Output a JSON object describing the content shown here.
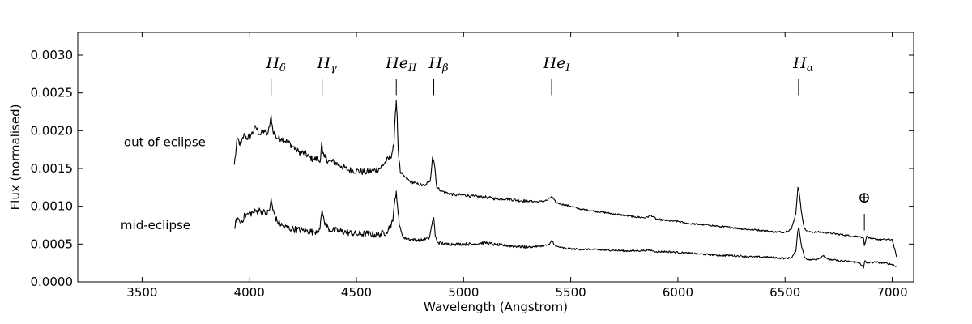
{
  "chart_data": {
    "type": "line",
    "title": "",
    "xlabel": "Wavelength (Angstrom)",
    "ylabel": "Flux (normalised)",
    "xlim": [
      3200,
      7100
    ],
    "ylim": [
      0,
      0.0033
    ],
    "x_ticks": [
      {
        "value": 3500,
        "label": "3500"
      },
      {
        "value": 4000,
        "label": "4000"
      },
      {
        "value": 4500,
        "label": "4500"
      },
      {
        "value": 5000,
        "label": "5000"
      },
      {
        "value": 5500,
        "label": "5500"
      },
      {
        "value": 6000,
        "label": "6000"
      },
      {
        "value": 6500,
        "label": "6500"
      },
      {
        "value": 7000,
        "label": "7000"
      }
    ],
    "y_ticks": [
      {
        "value": 0,
        "label": "0.0000"
      },
      {
        "value": 0.0005,
        "label": "0.0005"
      },
      {
        "value": 0.001,
        "label": "0.0010"
      },
      {
        "value": 0.0015,
        "label": "0.0015"
      },
      {
        "value": 0.002,
        "label": "0.0020"
      },
      {
        "value": 0.0025,
        "label": "0.0025"
      },
      {
        "value": 0.003,
        "label": "0.0030"
      }
    ],
    "grid": false,
    "legend": "none",
    "series": [
      {
        "name": "out of eclipse",
        "label_anchor": {
          "x": 3400,
          "y": 0.00185
        },
        "x": [
          3930,
          3945,
          3960,
          3975,
          3990,
          4010,
          4030,
          4050,
          4070,
          4085,
          4095,
          4102,
          4110,
          4130,
          4150,
          4180,
          4200,
          4230,
          4260,
          4280,
          4300,
          4320,
          4330,
          4338,
          4342,
          4350,
          4370,
          4400,
          4430,
          4460,
          4500,
          4540,
          4580,
          4610,
          4640,
          4660,
          4675,
          4682,
          4686,
          4690,
          4695,
          4705,
          4720,
          4750,
          4780,
          4820,
          4845,
          4855,
          4861,
          4866,
          4875,
          4900,
          4930,
          4960,
          5000,
          5050,
          5100,
          5150,
          5200,
          5250,
          5300,
          5350,
          5390,
          5411,
          5430,
          5470,
          5500,
          5550,
          5600,
          5650,
          5700,
          5750,
          5800,
          5850,
          5876,
          5900,
          5950,
          6000,
          6050,
          6100,
          6150,
          6200,
          6250,
          6300,
          6350,
          6400,
          6450,
          6500,
          6530,
          6550,
          6560,
          6565,
          6575,
          6590,
          6610,
          6650,
          6700,
          6750,
          6800,
          6850,
          6866,
          6870,
          6880,
          6900,
          6950,
          7000,
          7020
        ],
        "y": [
          0.00155,
          0.0019,
          0.0018,
          0.00195,
          0.0019,
          0.00195,
          0.00205,
          0.00195,
          0.002,
          0.00195,
          0.00205,
          0.0022,
          0.002,
          0.0019,
          0.0019,
          0.00185,
          0.0018,
          0.00172,
          0.0017,
          0.00165,
          0.00162,
          0.00163,
          0.00158,
          0.00185,
          0.0017,
          0.00165,
          0.0016,
          0.00158,
          0.00153,
          0.00148,
          0.00147,
          0.00145,
          0.00147,
          0.0015,
          0.0016,
          0.00165,
          0.0018,
          0.00225,
          0.0024,
          0.0022,
          0.00175,
          0.00145,
          0.0014,
          0.00133,
          0.0013,
          0.00127,
          0.00135,
          0.00165,
          0.0016,
          0.00152,
          0.00125,
          0.0012,
          0.00117,
          0.00115,
          0.00115,
          0.00113,
          0.00112,
          0.0011,
          0.0011,
          0.00108,
          0.00107,
          0.00106,
          0.00108,
          0.00113,
          0.00105,
          0.00102,
          0.001,
          0.00096,
          0.00094,
          0.00092,
          0.0009,
          0.00088,
          0.00086,
          0.00085,
          0.00088,
          0.00083,
          0.00081,
          0.0008,
          0.00077,
          0.00076,
          0.00075,
          0.00073,
          0.00072,
          0.0007,
          0.00069,
          0.00068,
          0.00066,
          0.00066,
          0.0007,
          0.0009,
          0.00125,
          0.0012,
          0.00095,
          0.0007,
          0.00066,
          0.00066,
          0.00065,
          0.00063,
          0.00061,
          0.0006,
          0.00058,
          0.00048,
          0.0006,
          0.00057,
          0.00056,
          0.00056,
          0.00033
        ]
      },
      {
        "name": "mid-eclipse",
        "label_anchor": {
          "x": 3400,
          "y": 0.00075
        },
        "x": [
          3930,
          3945,
          3960,
          3980,
          4000,
          4020,
          4050,
          4080,
          4095,
          4102,
          4110,
          4130,
          4160,
          4200,
          4250,
          4300,
          4330,
          4340,
          4350,
          4370,
          4400,
          4450,
          4500,
          4550,
          4600,
          4640,
          4670,
          4680,
          4686,
          4692,
          4700,
          4720,
          4760,
          4800,
          4840,
          4855,
          4861,
          4868,
          4880,
          4920,
          4960,
          5000,
          5050,
          5100,
          5150,
          5200,
          5250,
          5300,
          5350,
          5400,
          5411,
          5430,
          5480,
          5550,
          5600,
          5650,
          5700,
          5750,
          5800,
          5870,
          5900,
          5950,
          6000,
          6050,
          6100,
          6150,
          6200,
          6250,
          6300,
          6350,
          6400,
          6450,
          6500,
          6530,
          6550,
          6560,
          6565,
          6575,
          6590,
          6610,
          6650,
          6680,
          6700,
          6750,
          6800,
          6850,
          6866,
          6872,
          6880,
          6920,
          6960,
          7000,
          7020
        ],
        "y": [
          0.00072,
          0.00085,
          0.00078,
          0.00088,
          0.0009,
          0.00092,
          0.00095,
          0.0009,
          0.00095,
          0.0011,
          0.00095,
          0.0008,
          0.00073,
          0.0007,
          0.00068,
          0.00066,
          0.0007,
          0.00095,
          0.0008,
          0.0007,
          0.00068,
          0.00066,
          0.00063,
          0.00064,
          0.00062,
          0.00066,
          0.0008,
          0.0011,
          0.0012,
          0.001,
          0.00075,
          0.00058,
          0.00056,
          0.00055,
          0.00058,
          0.0008,
          0.00085,
          0.0006,
          0.00052,
          0.0005,
          0.0005,
          0.0005,
          0.0005,
          0.00052,
          0.00049,
          0.00048,
          0.00047,
          0.00046,
          0.00047,
          0.00049,
          0.00055,
          0.00047,
          0.00044,
          0.00043,
          0.00043,
          0.00042,
          0.00042,
          0.00041,
          0.00041,
          0.00042,
          0.0004,
          0.0004,
          0.00039,
          0.00038,
          0.00037,
          0.00036,
          0.00035,
          0.00035,
          0.00034,
          0.00033,
          0.00033,
          0.00032,
          0.00031,
          0.00032,
          0.0004,
          0.00068,
          0.00072,
          0.0005,
          0.00033,
          0.00029,
          0.0003,
          0.00035,
          0.0003,
          0.00028,
          0.00027,
          0.00025,
          0.00018,
          0.00028,
          0.00025,
          0.00026,
          0.00025,
          0.00023,
          0.0002
        ]
      }
    ],
    "line_markers": [
      {
        "base": "H",
        "sub": "δ",
        "x": 4102,
        "tick_y": [
          0.00247,
          0.00268
        ]
      },
      {
        "base": "H",
        "sub": "γ",
        "x": 4340,
        "tick_y": [
          0.00247,
          0.00268
        ]
      },
      {
        "base": "He",
        "sub": "II",
        "x": 4686,
        "tick_y": [
          0.00247,
          0.00268
        ]
      },
      {
        "base": "H",
        "sub": "β",
        "x": 4861,
        "tick_y": [
          0.00247,
          0.00268
        ]
      },
      {
        "base": "He",
        "sub": "I",
        "x": 5411,
        "tick_y": [
          0.00247,
          0.00268
        ]
      },
      {
        "base": "H",
        "sub": "α",
        "x": 6563,
        "tick_y": [
          0.00247,
          0.00268
        ]
      },
      {
        "base": "⊕",
        "sub": "",
        "x": 6870,
        "tick_y": [
          0.00068,
          0.0009
        ]
      }
    ]
  }
}
